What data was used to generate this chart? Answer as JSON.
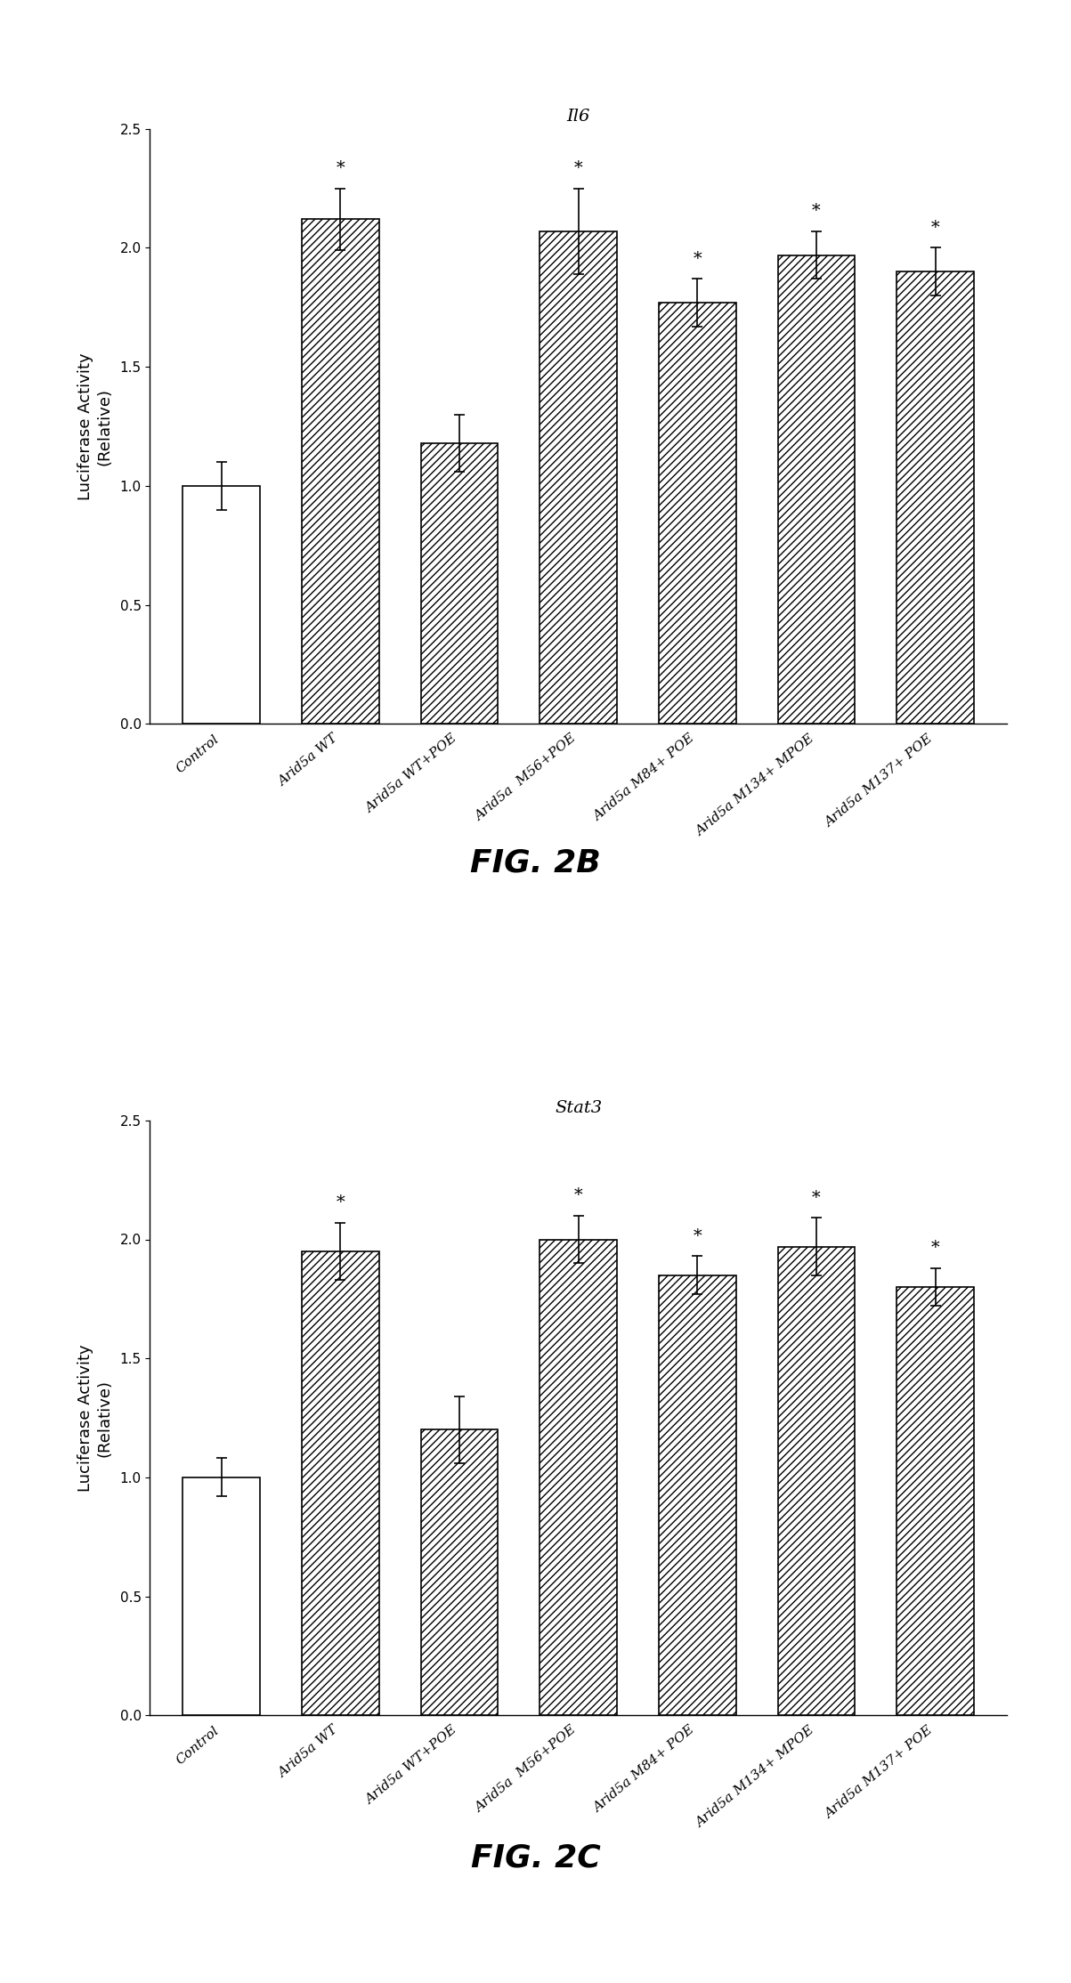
{
  "fig2b": {
    "title": "Il6",
    "values": [
      1.0,
      2.12,
      1.18,
      2.07,
      1.77,
      1.97,
      1.9
    ],
    "errors": [
      0.1,
      0.13,
      0.12,
      0.18,
      0.1,
      0.1,
      0.1
    ],
    "significant": [
      false,
      true,
      false,
      true,
      true,
      true,
      true
    ],
    "hatched": [
      false,
      true,
      true,
      true,
      true,
      true,
      true
    ],
    "ylim": [
      0,
      2.5
    ],
    "yticks": [
      0,
      0.5,
      1.0,
      1.5,
      2.0,
      2.5
    ],
    "ylabel": "Luciferase Activity\n(Relative)",
    "fig_label": "FIG. 2B",
    "xtick_labels": [
      "Control",
      "Arid5a WT",
      "Arid5a WT+POE",
      "Arid5a  M56+POE",
      "Arid5a M84+ POE",
      "Arid5a M134+ MPOE",
      "Arid5a M137+ POE"
    ]
  },
  "fig2c": {
    "title": "Stat3",
    "values": [
      1.0,
      1.95,
      1.2,
      2.0,
      1.85,
      1.97,
      1.8
    ],
    "errors": [
      0.08,
      0.12,
      0.14,
      0.1,
      0.08,
      0.12,
      0.08
    ],
    "significant": [
      false,
      true,
      false,
      true,
      true,
      true,
      true
    ],
    "hatched": [
      false,
      true,
      true,
      true,
      true,
      true,
      true
    ],
    "ylim": [
      0,
      2.5
    ],
    "yticks": [
      0,
      0.5,
      1.0,
      1.5,
      2.0,
      2.5
    ],
    "ylabel": "Luciferase Activity\n(Relative)",
    "fig_label": "FIG. 2C",
    "xtick_labels": [
      "Control",
      "Arid5a WT",
      "Arid5a WT+POE",
      "Arid5a  M56+POE",
      "Arid5a M84+ POE",
      "Arid5a M134+ MPOE",
      "Arid5a M137+ POE"
    ]
  },
  "bar_color": "#ffffff",
  "bar_edgecolor": "#000000",
  "hatch_pattern": "////",
  "bar_width": 0.65,
  "background_color": "#ffffff",
  "tick_label_fontsize": 11,
  "axis_label_fontsize": 13,
  "title_fontsize": 14,
  "fig_label_fontsize": 26,
  "star_fontsize": 14,
  "xticklabel_rotation": 40
}
